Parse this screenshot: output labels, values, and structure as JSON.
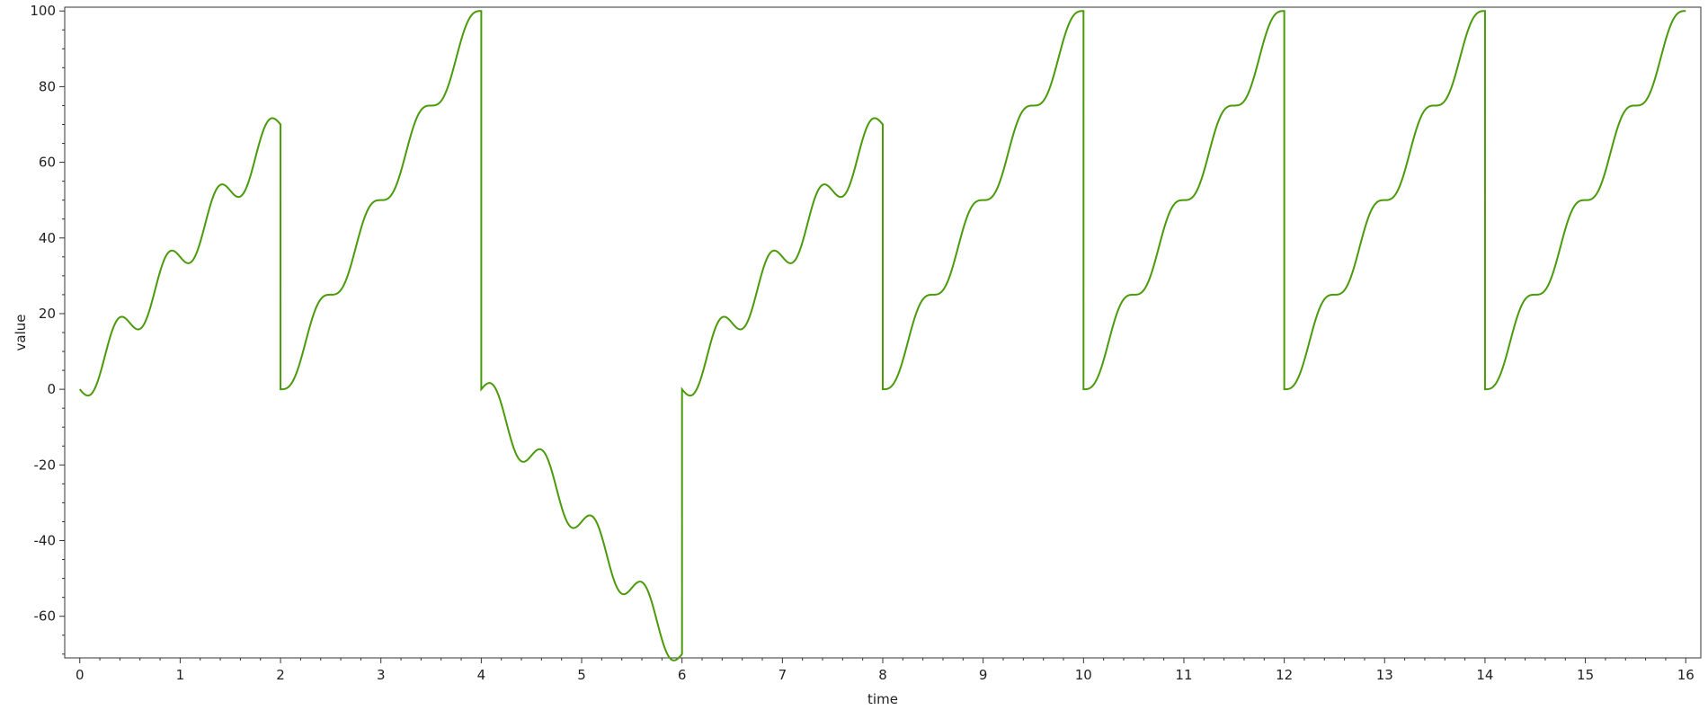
{
  "chart_data": {
    "type": "line",
    "title": "",
    "xlabel": "time",
    "ylabel": "value",
    "xlim": [
      -0.15,
      16.15
    ],
    "ylim": [
      -71,
      101
    ],
    "x_ticks": [
      0,
      1,
      2,
      3,
      4,
      5,
      6,
      7,
      8,
      9,
      10,
      11,
      12,
      13,
      14,
      15,
      16
    ],
    "x_tick_labels": [
      "0",
      "1",
      "2",
      "3",
      "4",
      "5",
      "6",
      "7",
      "8",
      "9",
      "10",
      "11",
      "12",
      "13",
      "14",
      "15",
      "16"
    ],
    "y_ticks": [
      -60,
      -40,
      -20,
      0,
      20,
      40,
      60,
      80,
      100
    ],
    "y_tick_labels": [
      "-60",
      "-40",
      "-20",
      "0",
      "20",
      "40",
      "60",
      "80",
      "100"
    ],
    "grid": false,
    "line_color": "#4a9a0a",
    "series": [
      {
        "segments": [
          {
            "t0": 0,
            "t1": 2,
            "step": 17.5,
            "phase": 0
          },
          {
            "t0": 2,
            "t1": 4,
            "step": 25,
            "phase": 0.5
          },
          {
            "t0": 4,
            "t1": 6,
            "step": -17.5,
            "phase": 0
          },
          {
            "t0": 6,
            "t1": 8,
            "step": 17.5,
            "phase": 0
          },
          {
            "t0": 8,
            "t1": 10,
            "step": 25,
            "phase": 0.5
          },
          {
            "t0": 10,
            "t1": 12,
            "step": 25,
            "phase": 0.5
          },
          {
            "t0": 12,
            "t1": 14,
            "step": 25,
            "phase": 0.5
          },
          {
            "t0": 14,
            "t1": 16,
            "step": 25,
            "phase": 0.5
          }
        ]
      }
    ]
  }
}
